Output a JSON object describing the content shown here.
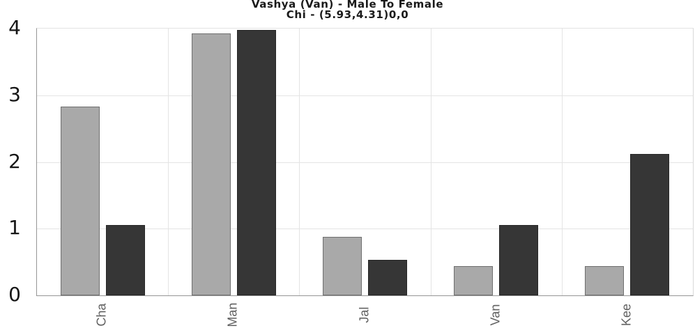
{
  "title": "Vashya (Van) - Male To Female",
  "subtitle": "Chi - (5.93,4.31)0,0",
  "colors": {
    "gray_bar_fill": "#a9a9a9",
    "gray_bar_border": "#6f6f6f",
    "dark_bar_fill": "#363636",
    "dark_bar_border": "#262626",
    "gridline": "#e4e4e4",
    "axis_line": "#969696",
    "y_tick_text": "#161616",
    "x_tick_text": "#616161"
  },
  "chart_data": {
    "type": "bar",
    "orientation": "vertical",
    "title": "Vashya (Van) - Male To Female",
    "subtitle": "Chi - (5.93,4.31)0,0",
    "categories": [
      "Cha",
      "Man",
      "Jal",
      "Van",
      "Kee"
    ],
    "series": [
      {
        "name": "gray",
        "color": "#a9a9a9",
        "border": "#6f6f6f",
        "values": [
          2.83,
          3.93,
          0.88,
          0.44,
          0.44
        ]
      },
      {
        "name": "dark",
        "color": "#363636",
        "border": "#262626",
        "values": [
          1.06,
          3.98,
          0.53,
          1.06,
          2.12
        ]
      }
    ],
    "xlabel": "",
    "ylabel": "",
    "ylim": [
      0,
      4
    ],
    "yticks": [
      0,
      1,
      2,
      3,
      4
    ],
    "grid": true,
    "x_tick_rotation": -90,
    "legend": "none"
  }
}
